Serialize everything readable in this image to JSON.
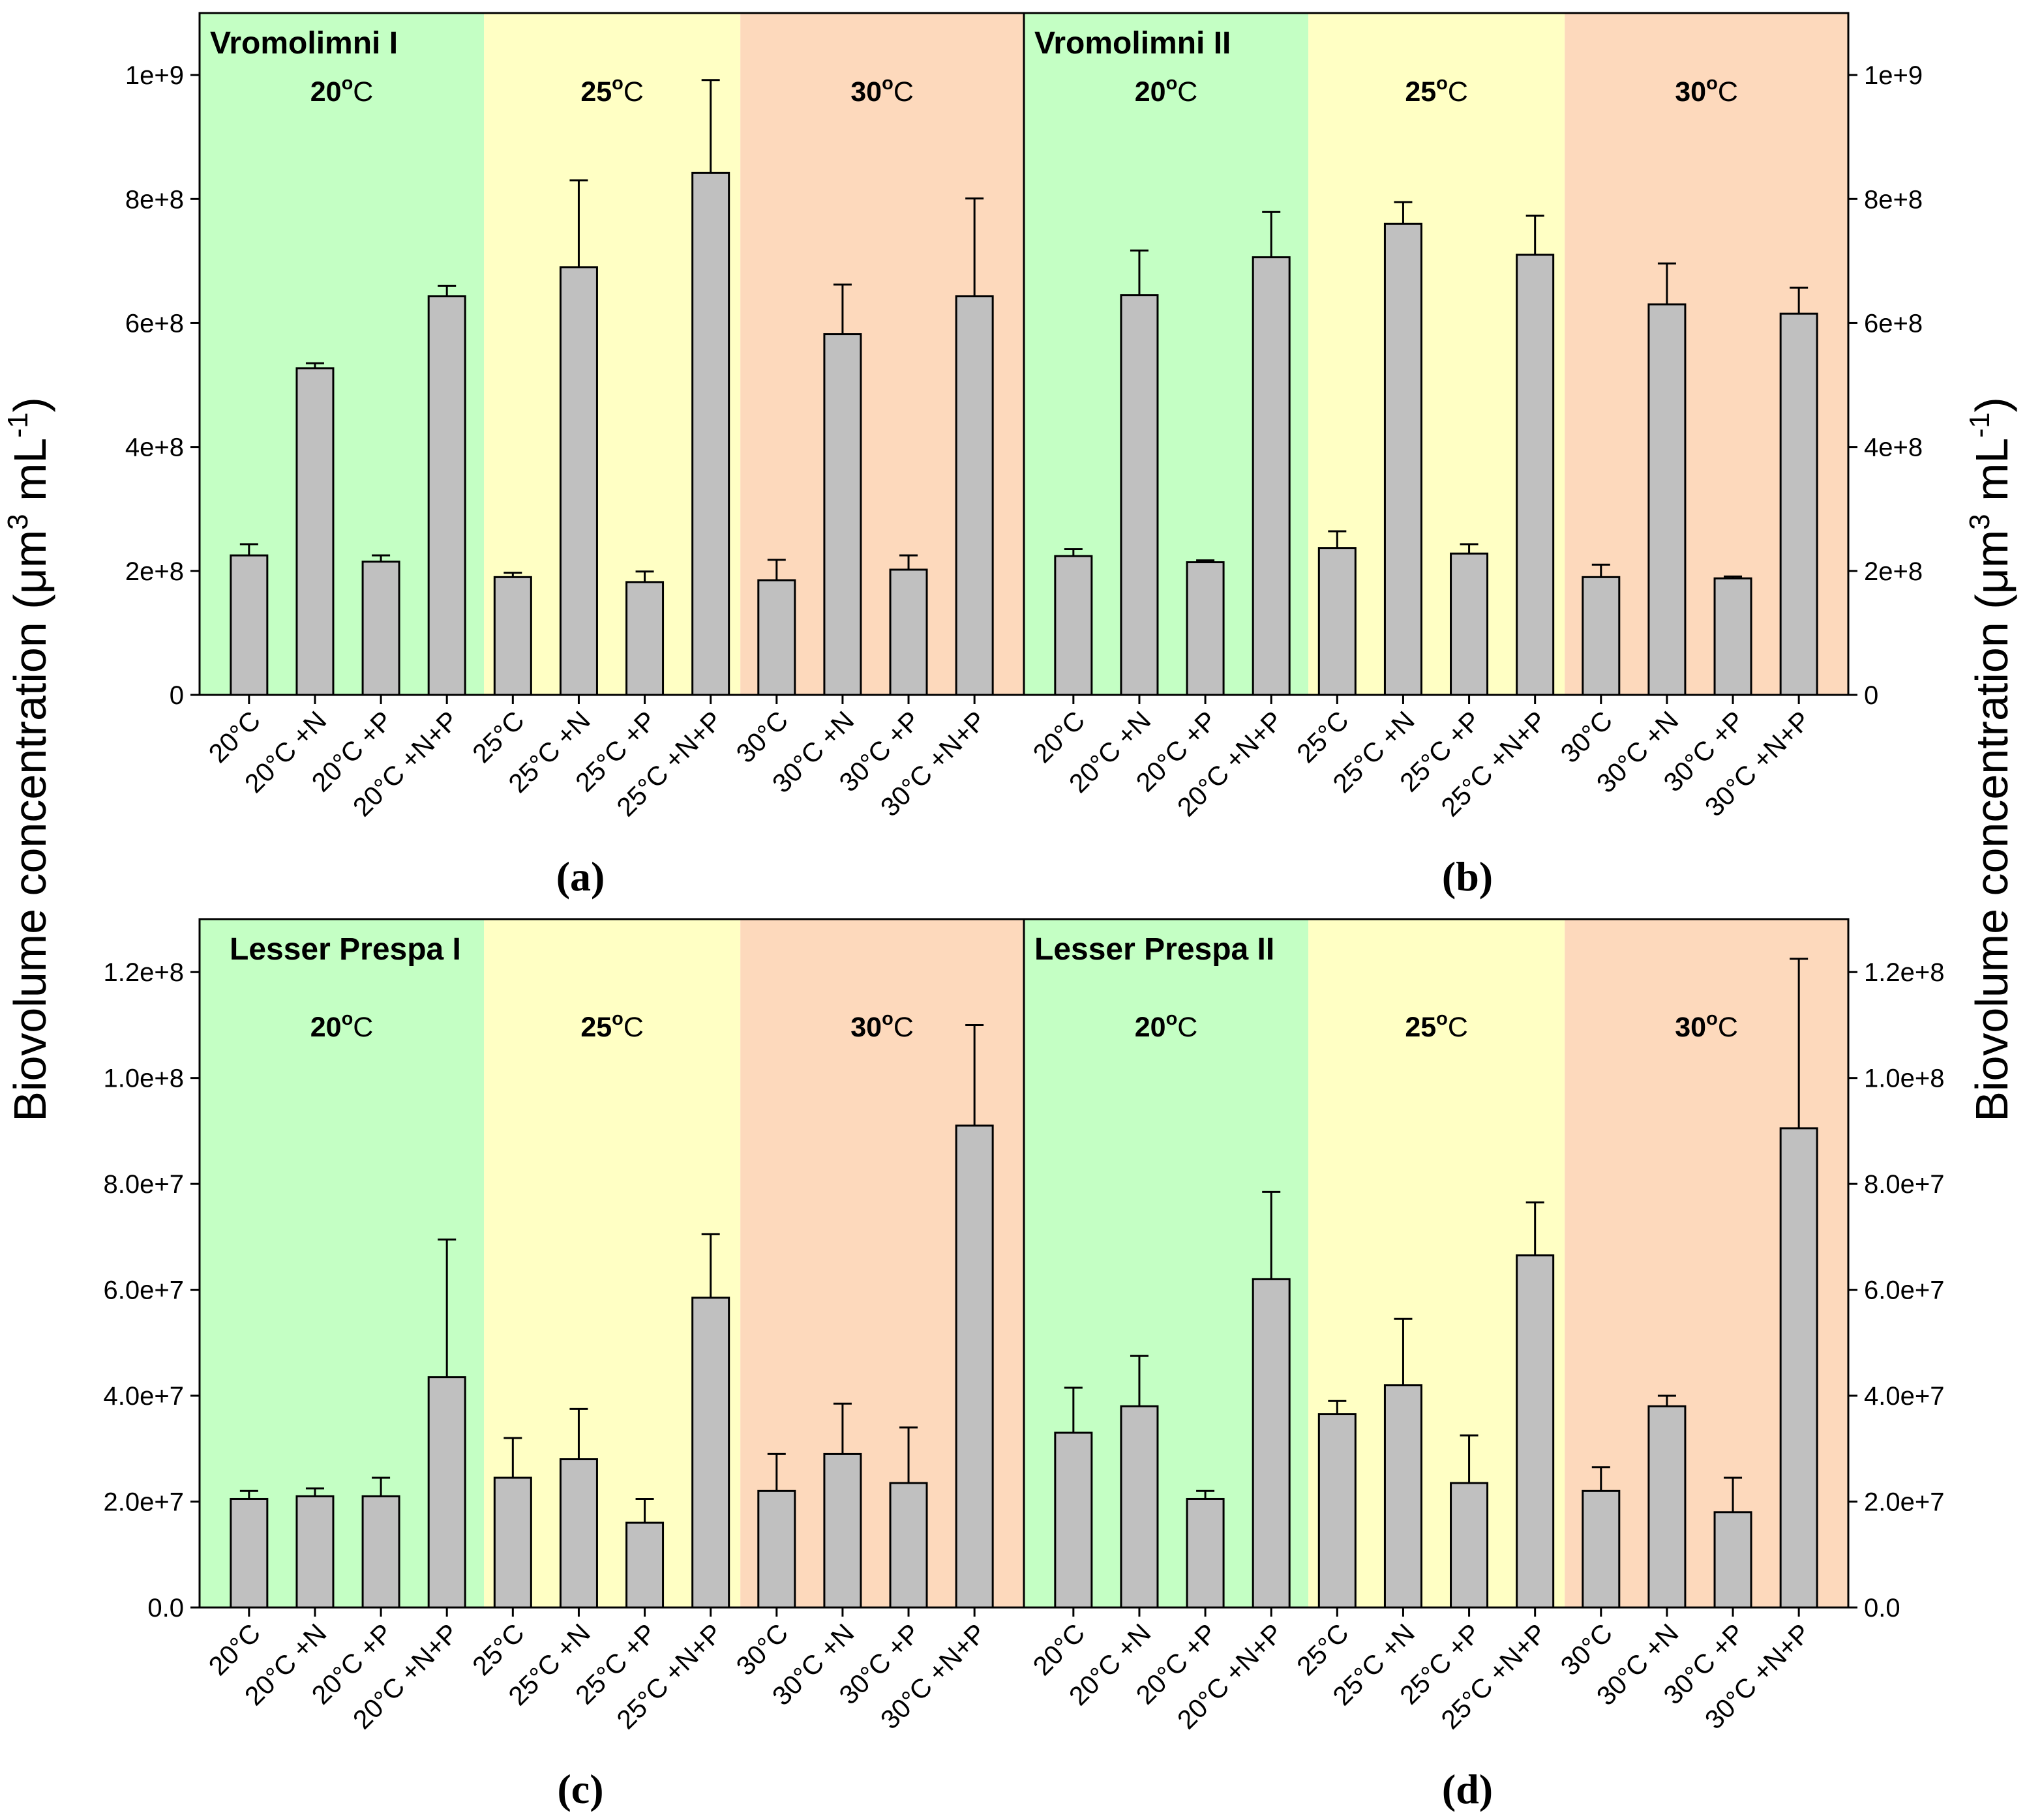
{
  "figure": {
    "ylabel_main": "Biovolume concentration (μm",
    "ylabel_unit_sup": "3",
    "ylabel_unit_mid": " mL",
    "ylabel_unit_sup2": "-1",
    "ylabel_close": ")",
    "colors": {
      "band_20": "#c4ffc4",
      "band_25": "#ffffc4",
      "band_30": "#fdd9bc",
      "bar_fill": "#c0c0c0",
      "outline": "#000000"
    }
  },
  "chart_data": [
    {
      "type": "bar",
      "panel_label": "(a)",
      "site": "Vromolimni I",
      "axis_side": "left",
      "ylim": [
        0,
        1100000000
      ],
      "yticks": [
        0,
        200000000,
        400000000,
        600000000,
        800000000,
        1000000000
      ],
      "ytick_labels": [
        "0",
        "2e+8",
        "4e+8",
        "6e+8",
        "8e+8",
        "1e+9"
      ],
      "temperature_groups": [
        {
          "value": "20",
          "unit": "C",
          "sup": "o"
        },
        {
          "value": "25",
          "unit": "C",
          "sup": "o"
        },
        {
          "value": "30",
          "unit": "C",
          "sup": "o"
        }
      ],
      "categories": [
        "20°C",
        "20°C +N",
        "20°C +P",
        "20°C +N+P",
        "25°C",
        "25°C +N",
        "25°C +P",
        "25°C +N+P",
        "30°C",
        "30°C +N",
        "30°C +P",
        "30°C +N+P"
      ],
      "values": [
        225000000,
        527000000,
        215000000,
        643000000,
        190000000,
        690000000,
        182000000,
        842000000,
        185000000,
        582000000,
        202000000,
        643000000
      ],
      "errors": [
        18000000,
        8000000,
        10000000,
        17000000,
        7000000,
        140000000,
        17000000,
        150000000,
        33000000,
        80000000,
        23000000,
        158000000
      ]
    },
    {
      "type": "bar",
      "panel_label": "(b)",
      "site": "Vromolimni II",
      "axis_side": "right",
      "ylim": [
        0,
        1100000000
      ],
      "yticks": [
        0,
        200000000,
        400000000,
        600000000,
        800000000,
        1000000000
      ],
      "ytick_labels": [
        "0",
        "2e+8",
        "4e+8",
        "6e+8",
        "8e+8",
        "1e+9"
      ],
      "temperature_groups": [
        {
          "value": "20",
          "unit": "C",
          "sup": "o"
        },
        {
          "value": "25",
          "unit": "C",
          "sup": "o"
        },
        {
          "value": "30",
          "unit": "C",
          "sup": "o"
        }
      ],
      "categories": [
        "20°C",
        "20°C +N",
        "20°C +P",
        "20°C +N+P",
        "25°C",
        "25°C +N",
        "25°C +P",
        "25°C +N+P",
        "30°C",
        "30°C +N",
        "30°C +P",
        "30°C +N+P"
      ],
      "values": [
        224000000,
        645000000,
        214000000,
        706000000,
        237000000,
        760000000,
        228000000,
        710000000,
        190000000,
        630000000,
        188000000,
        615000000
      ],
      "errors": [
        11000000,
        72000000,
        3000000,
        73000000,
        27000000,
        35000000,
        15000000,
        63000000,
        20000000,
        66000000,
        3000000,
        42000000
      ]
    },
    {
      "type": "bar",
      "panel_label": "(c)",
      "site": "Lesser Prespa I",
      "axis_side": "left",
      "ylim": [
        0,
        130000000
      ],
      "yticks": [
        0,
        20000000,
        40000000,
        60000000,
        80000000,
        100000000,
        120000000
      ],
      "ytick_labels": [
        "0.0",
        "2.0e+7",
        "4.0e+7",
        "6.0e+7",
        "8.0e+7",
        "1.0e+8",
        "1.2e+8"
      ],
      "temperature_groups": [
        {
          "value": "20",
          "unit": "C",
          "sup": "o"
        },
        {
          "value": "25",
          "unit": "C",
          "sup": "o"
        },
        {
          "value": "30",
          "unit": "C",
          "sup": "o"
        }
      ],
      "categories": [
        "20°C",
        "20°C +N",
        "20°C +P",
        "20°C +N+P",
        "25°C",
        "25°C +N",
        "25°C +P",
        "25°C +N+P",
        "30°C",
        "30°C +N",
        "30°C +P",
        "30°C +N+P"
      ],
      "values": [
        20500000,
        21000000,
        21000000,
        43500000,
        24500000,
        28000000,
        16000000,
        58500000,
        22000000,
        29000000,
        23500000,
        91000000
      ],
      "errors": [
        1500000,
        1500000,
        3500000,
        26000000,
        7500000,
        9500000,
        4500000,
        12000000,
        7000000,
        9500000,
        10500000,
        19000000
      ]
    },
    {
      "type": "bar",
      "panel_label": "(d)",
      "site": "Lesser Prespa II",
      "axis_side": "right",
      "ylim": [
        0,
        130000000
      ],
      "yticks": [
        0,
        20000000,
        40000000,
        60000000,
        80000000,
        100000000,
        120000000
      ],
      "ytick_labels": [
        "0.0",
        "2.0e+7",
        "4.0e+7",
        "6.0e+7",
        "8.0e+7",
        "1.0e+8",
        "1.2e+8"
      ],
      "temperature_groups": [
        {
          "value": "20",
          "unit": "C",
          "sup": "o"
        },
        {
          "value": "25",
          "unit": "C",
          "sup": "o"
        },
        {
          "value": "30",
          "unit": "C",
          "sup": "o"
        }
      ],
      "categories": [
        "20°C",
        "20°C +N",
        "20°C +P",
        "20°C +N+P",
        "25°C",
        "25°C +N",
        "25°C +P",
        "25°C +N+P",
        "30°C",
        "30°C +N",
        "30°C +P",
        "30°C +N+P"
      ],
      "values": [
        33000000,
        38000000,
        20500000,
        62000000,
        36500000,
        42000000,
        23500000,
        66500000,
        22000000,
        38000000,
        18000000,
        90500000
      ],
      "errors": [
        8500000,
        9500000,
        1500000,
        16500000,
        2500000,
        12500000,
        9000000,
        10000000,
        4500000,
        2000000,
        6500000,
        32000000
      ]
    }
  ]
}
